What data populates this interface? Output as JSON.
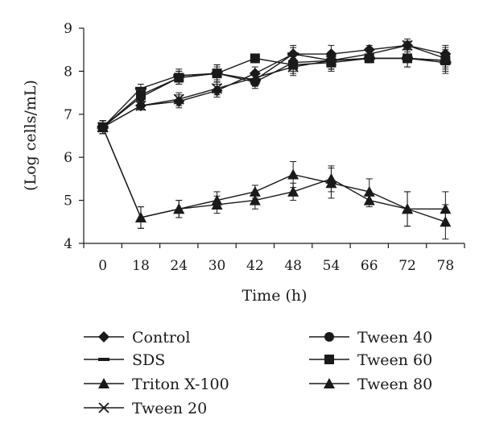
{
  "chart_data": {
    "type": "line",
    "title": "",
    "xlabel": "Time (h)",
    "ylabel": "(Log cells/mL)",
    "categories": [
      "0",
      "18",
      "24",
      "30",
      "42",
      "48",
      "54",
      "66",
      "72",
      "78"
    ],
    "ylim": [
      4,
      9
    ],
    "yticks": [
      "4",
      "5",
      "6",
      "7",
      "8",
      "9"
    ],
    "grid": false,
    "legend_position": "bottom",
    "series": [
      {
        "name": "Control",
        "marker": "diamond",
        "values": [
          6.7,
          7.2,
          7.3,
          7.55,
          7.95,
          8.4,
          8.4,
          8.5,
          8.6,
          8.4
        ],
        "errors": [
          0.15,
          0.1,
          0.15,
          0.15,
          0.15,
          0.15,
          0.2,
          0.1,
          0.1,
          0.2
        ]
      },
      {
        "name": "SDS",
        "marker": "dash",
        "values": [
          6.7,
          7.6,
          7.9,
          7.95,
          7.8,
          8.4,
          8.25,
          8.3,
          8.3,
          8.2
        ],
        "errors": [
          0.15,
          0.1,
          0.15,
          0.2,
          0.15,
          0.2,
          0.2,
          0.1,
          0.2,
          0.2
        ]
      },
      {
        "name": "Triton X-100",
        "marker": "triangle",
        "values": [
          6.7,
          4.6,
          4.8,
          4.9,
          5.0,
          5.2,
          5.5,
          5.0,
          4.8,
          4.8
        ],
        "errors": [
          0.15,
          0.25,
          0.2,
          0.2,
          0.2,
          0.2,
          0.3,
          0.15,
          0.4,
          0.4
        ]
      },
      {
        "name": "Tween 20",
        "marker": "x",
        "values": [
          6.7,
          7.2,
          7.35,
          7.6,
          7.85,
          8.1,
          8.25,
          8.4,
          8.6,
          8.3
        ],
        "errors": [
          0.15,
          0.1,
          0.15,
          0.15,
          0.15,
          0.2,
          0.2,
          0.15,
          0.15,
          0.2
        ]
      },
      {
        "name": "Tween 40",
        "marker": "circle",
        "values": [
          6.7,
          7.4,
          7.85,
          7.95,
          7.75,
          8.2,
          8.25,
          8.3,
          8.3,
          8.25
        ],
        "errors": [
          0.15,
          0.1,
          0.15,
          0.15,
          0.15,
          0.2,
          0.2,
          0.1,
          0.2,
          0.2
        ]
      },
      {
        "name": "Tween 60",
        "marker": "square",
        "values": [
          6.7,
          7.45,
          7.85,
          7.95,
          8.3,
          8.15,
          8.2,
          8.3,
          8.3,
          8.25
        ],
        "errors": [
          0.15,
          0.1,
          0.15,
          0.2,
          0.1,
          0.2,
          0.2,
          0.1,
          0.2,
          0.3
        ]
      },
      {
        "name": "Tween 80",
        "marker": "triangle",
        "values": [
          6.7,
          4.6,
          4.8,
          5.0,
          5.2,
          5.6,
          5.4,
          5.2,
          4.8,
          4.5
        ],
        "errors": [
          0.15,
          0.25,
          0.2,
          0.2,
          0.15,
          0.3,
          0.35,
          0.3,
          0.4,
          0.4
        ]
      }
    ]
  }
}
